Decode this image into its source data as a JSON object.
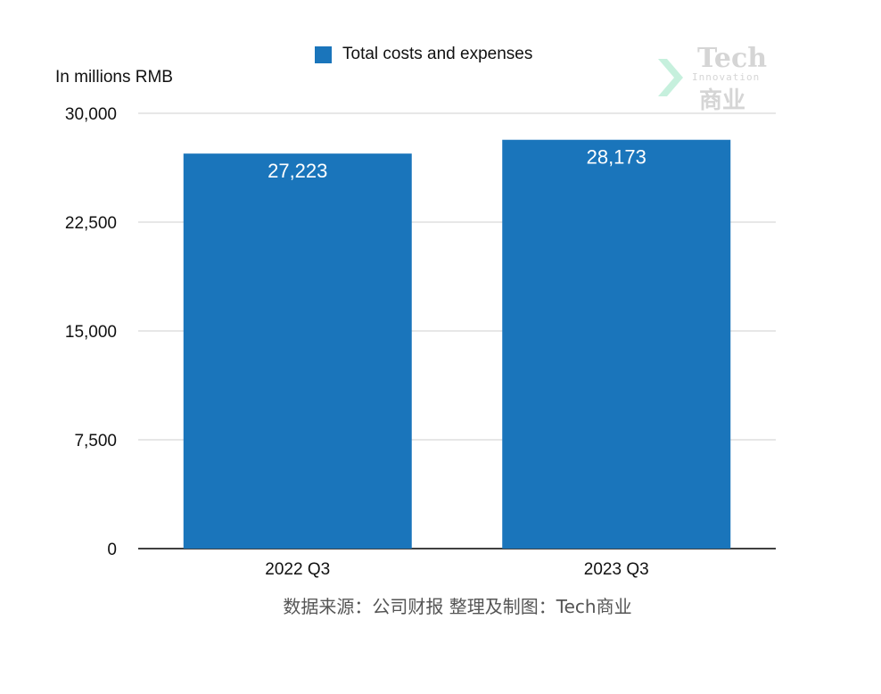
{
  "chart_data": {
    "type": "bar",
    "categories": [
      "2022 Q3",
      "2023 Q3"
    ],
    "series": [
      {
        "name": "Total costs and expenses",
        "values": [
          27223,
          28173
        ],
        "color": "#1a75bb"
      }
    ],
    "data_labels": [
      "27,223",
      "28,173"
    ],
    "ylabel": "In millions RMB",
    "ylim": [
      0,
      30000
    ],
    "yticks": [
      0,
      7500,
      15000,
      22500,
      30000
    ],
    "ytick_labels": [
      "0",
      "7,500",
      "15,000",
      "22,500",
      "30,000"
    ],
    "grid": true,
    "legend_position": "top-center"
  },
  "legend": {
    "label": "Total costs and expenses"
  },
  "unit_label": "In millions RMB",
  "source_text": "数据来源：公司财报 整理及制图：Tech商业",
  "watermark": {
    "line1": "Tech",
    "line2": "Innovation",
    "line3": "商业"
  }
}
